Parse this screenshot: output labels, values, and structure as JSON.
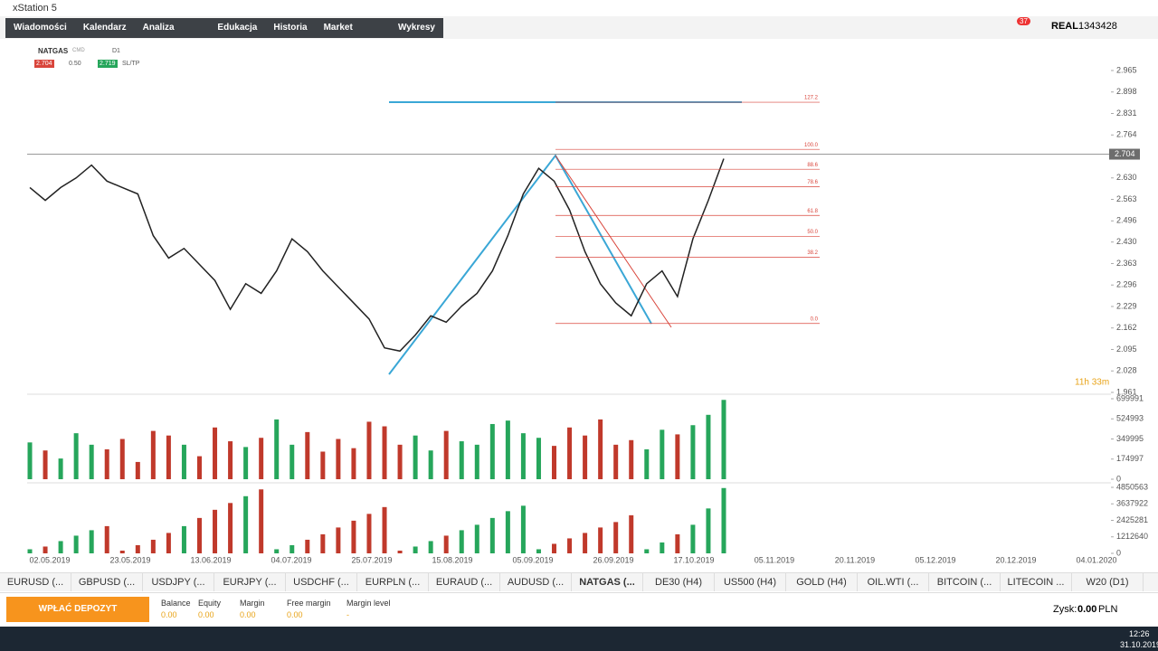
{
  "window": {
    "title": "xStation 5"
  },
  "nav": {
    "items": [
      "Wiadomości",
      "Kalendarz",
      "Analiza rynku",
      "Edukacja",
      "Historia",
      "Market Watch",
      "Wykresy"
    ],
    "account_type": "REAL",
    "account_id": "1343428",
    "notifications": 37
  },
  "toolbar": {
    "symbol": "NATGAS",
    "kind": "CMD",
    "interval": "D1",
    "bid": "2.704",
    "volume": "0.50",
    "ask": "2.719",
    "sltp": "SL/TP"
  },
  "chart_data": {
    "type": "line",
    "color": "#222222",
    "x_labels": [
      "02.05.2019",
      "23.05.2019",
      "13.06.2019",
      "04.07.2019",
      "25.07.2019",
      "15.08.2019",
      "05.09.2019",
      "26.09.2019",
      "17.10.2019",
      "05.11.2019",
      "20.11.2019",
      "05.12.2019",
      "20.12.2019",
      "04.01.2020"
    ],
    "values": [
      2.6,
      2.56,
      2.6,
      2.63,
      2.67,
      2.62,
      2.6,
      2.58,
      2.45,
      2.38,
      2.41,
      2.36,
      2.31,
      2.22,
      2.3,
      2.27,
      2.34,
      2.44,
      2.4,
      2.34,
      2.29,
      2.24,
      2.19,
      2.1,
      2.09,
      2.14,
      2.2,
      2.18,
      2.23,
      2.27,
      2.34,
      2.45,
      2.58,
      2.66,
      2.62,
      2.53,
      2.4,
      2.3,
      2.24,
      2.2,
      2.3,
      2.34,
      2.26,
      2.44,
      2.56,
      2.69
    ],
    "ylim": [
      1.961,
      3.058
    ],
    "yticks": [
      2.965,
      2.898,
      2.831,
      2.764,
      {
        "value": 2.63,
        "label": "2.630"
      },
      2.563,
      2.496,
      {
        "value": 2.43,
        "label": "2.430"
      },
      2.363,
      2.296,
      2.229,
      2.162,
      2.095,
      2.028,
      1.961
    ],
    "current_price": 2.704,
    "timer": "11h 33m",
    "fib_levels": [
      {
        "label": "127.2",
        "value": 2.866
      },
      {
        "label": "100.0",
        "value": 2.719
      },
      {
        "label": "88.6",
        "value": 2.657
      },
      {
        "label": "78.6",
        "value": 2.603
      },
      {
        "label": "61.8",
        "value": 2.513
      },
      {
        "label": "50.0",
        "value": 2.448
      },
      {
        "label": "38.2",
        "value": 2.383
      },
      {
        "label": "0.0",
        "value": 2.176
      }
    ],
    "volume": {
      "ylim": [
        0,
        699991
      ],
      "yticks": [
        699991,
        524993,
        349995,
        174997,
        0
      ],
      "values": [
        320000,
        250000,
        180000,
        400000,
        300000,
        260000,
        350000,
        150000,
        420000,
        380000,
        300000,
        200000,
        450000,
        330000,
        280000,
        360000,
        520000,
        300000,
        410000,
        240000,
        350000,
        270000,
        500000,
        460000,
        300000,
        380000,
        250000,
        420000,
        330000,
        300000,
        480000,
        510000,
        400000,
        360000,
        290000,
        450000,
        380000,
        520000,
        300000,
        340000,
        260000,
        430000,
        390000,
        470000,
        560000,
        690000
      ]
    },
    "indicator": {
      "ylim": [
        0,
        4850563
      ],
      "yticks": [
        4850563,
        3637922,
        2425281,
        1212640,
        0
      ],
      "values": [
        300000,
        500000,
        900000,
        1300000,
        1700000,
        2000000,
        200000,
        600000,
        1000000,
        1500000,
        2000000,
        2600000,
        3200000,
        3700000,
        4200000,
        4700000,
        300000,
        600000,
        1000000,
        1400000,
        1900000,
        2400000,
        2900000,
        3400000,
        200000,
        500000,
        900000,
        1300000,
        1700000,
        2100000,
        2600000,
        3100000,
        3500000,
        300000,
        700000,
        1100000,
        1500000,
        1900000,
        2300000,
        2800000,
        300000,
        800000,
        1400000,
        2100000,
        3300000,
        4800000
      ]
    }
  },
  "tabs": [
    "EURUSD (...",
    "GBPUSD (...",
    "USDJPY (...",
    "EURJPY (...",
    "USDCHF (...",
    "EURPLN (...",
    "EURAUD (...",
    "AUDUSD (...",
    "NATGAS (...",
    "DE30 (H4)",
    "US500 (H4)",
    "GOLD (H4)",
    "OIL.WTI (...",
    "BITCOIN (...",
    "LITECOIN ...",
    "W20 (D1)"
  ],
  "footer": {
    "button": "WPŁAĆ DEPOZYT",
    "fields": [
      {
        "label": "Balance",
        "value": "0.00"
      },
      {
        "label": "Equity",
        "value": "0.00"
      },
      {
        "label": "Margin",
        "value": "0.00"
      },
      {
        "label": "Free margin",
        "value": "0.00"
      },
      {
        "label": "Margin level",
        "value": "-"
      }
    ],
    "profit_label": "Zysk:",
    "profit_value": "0.00",
    "currency": "PLN"
  },
  "taskbar": {
    "time": "12:26",
    "date": "31.10.2019"
  }
}
